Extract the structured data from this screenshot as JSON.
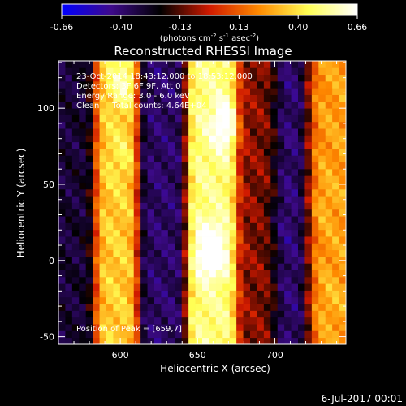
{
  "chart_data": {
    "type": "heatmap",
    "title": "Reconstructed RHESSI Image",
    "xlabel": "Heliocentric X (arcsec)",
    "ylabel": "Heliocentric Y (arcsec)",
    "xlim": [
      560,
      746
    ],
    "ylim": [
      -55,
      131
    ],
    "xticks": [
      600,
      650,
      700
    ],
    "yticks": [
      -50,
      0,
      50,
      100
    ],
    "colorbar": {
      "ticks": [
        "-0.66",
        "-0.40",
        "-0.13",
        "0.13",
        "0.40",
        "0.66"
      ],
      "range": [
        -0.66,
        0.66
      ],
      "unit_parts": [
        "(photons cm",
        "-2",
        " s",
        "-1",
        " asec",
        "-2",
        ")"
      ]
    },
    "annotations": [
      "23-Oct-2014 18:43:12.000 to 18:53:12.000",
      "Detectors: 3F 6F 9F, Att 0",
      "Energy Range: 3.0 - 6.0 keV",
      "Clean     Total counts: 4.64E+04"
    ],
    "peak_label": "Position of Peak = [659,7]",
    "peak_position": [
      659,
      7
    ],
    "colormap": [
      "#0000ff",
      "#3e0a8c",
      "#000000",
      "#d01a00",
      "#ff8a00",
      "#ffff55",
      "#ffffff"
    ],
    "description_note": "",
    "bands": [
      {
        "x": 570,
        "value": -0.3
      },
      {
        "x": 597,
        "value": 0.35
      },
      {
        "x": 626,
        "value": -0.38
      },
      {
        "x": 660,
        "value": 0.5
      },
      {
        "x": 690,
        "value": -0.08
      },
      {
        "x": 711,
        "value": -0.4
      },
      {
        "x": 733,
        "value": 0.26
      }
    ],
    "peaks": [
      {
        "x": 659,
        "y": 7,
        "value": 0.66
      },
      {
        "x": 668,
        "y": 90,
        "value": 0.52
      },
      {
        "x": 602,
        "y": 118,
        "value": 0.48
      },
      {
        "x": 601,
        "y": 70,
        "value": 0.33
      },
      {
        "x": 730,
        "y": 40,
        "value": 0.3
      },
      {
        "x": 735,
        "y": -25,
        "value": 0.3
      },
      {
        "x": 700,
        "y": 25,
        "value": 0.2
      }
    ]
  },
  "footer": {
    "date_label": "6-Jul-2017 00:01"
  }
}
